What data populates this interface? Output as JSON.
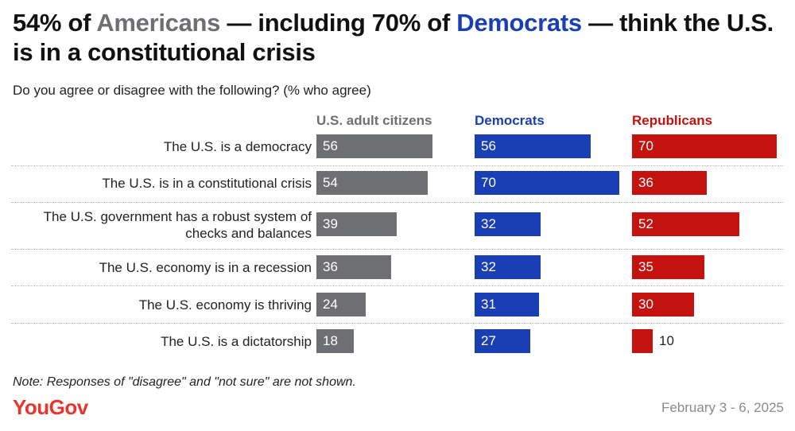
{
  "title": {
    "part1": "54% of ",
    "hl1": "Americans",
    "part2": " — including 70% of ",
    "hl2": "Democrats",
    "part3": " — think the U.S. is in a constitutional crisis"
  },
  "subtitle": "Do you agree or disagree with the following? (% who agree)",
  "note": "Note: Responses of \"disagree\" and \"not sure\" are not shown.",
  "brand": "YouGov",
  "date": "February 3 - 6, 2025",
  "colors": {
    "adults": "#6e6f73",
    "democrats": "#1a3fb5",
    "republicans": "#c4120e",
    "brand": "#e8352d"
  },
  "chart_data": {
    "type": "bar",
    "orientation": "horizontal",
    "title": "54% of Americans — including 70% of Democrats — think the U.S. is in a constitutional crisis",
    "subtitle": "Do you agree or disagree with the following? (% who agree)",
    "unit": "% who agree",
    "categories": [
      "The U.S. is a democracy",
      "The U.S. is in a constitutional crisis",
      "The U.S. government has a robust system of checks and balances",
      "The U.S. economy is in a recession",
      "The U.S. economy is thriving",
      "The U.S. is a dictatorship"
    ],
    "series": [
      {
        "name": "U.S. adult citizens",
        "color": "#6e6f73",
        "values": [
          56,
          54,
          39,
          36,
          24,
          18
        ]
      },
      {
        "name": "Democrats",
        "color": "#1a3fb5",
        "values": [
          56,
          70,
          32,
          32,
          31,
          27
        ]
      },
      {
        "name": "Republicans",
        "color": "#c4120e",
        "values": [
          70,
          36,
          52,
          35,
          30,
          10
        ]
      }
    ],
    "xlim": [
      0,
      70
    ]
  }
}
